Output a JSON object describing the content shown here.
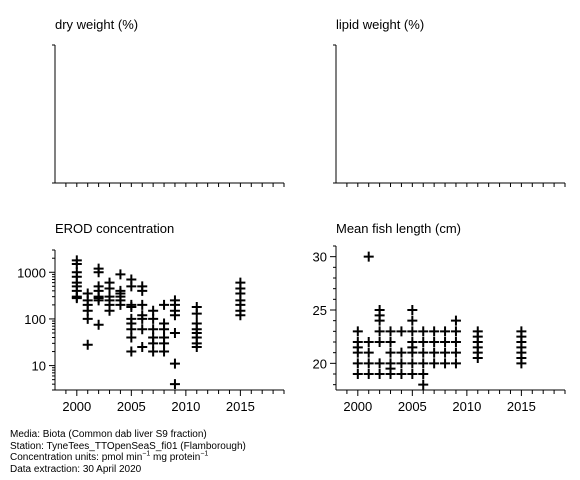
{
  "panels": [
    {
      "id": "dry",
      "title": "dry weight (%)",
      "scale": "linear",
      "empty": true,
      "xlim": [
        1998,
        2019
      ],
      "xticks": [],
      "ylim": [
        0,
        1
      ],
      "yticks": [],
      "points": []
    },
    {
      "id": "lipid",
      "title": "lipid weight (%)",
      "scale": "linear",
      "empty": true,
      "xlim": [
        1998,
        2019
      ],
      "xticks": [],
      "ylim": [
        0,
        1
      ],
      "yticks": [],
      "points": []
    },
    {
      "id": "erod",
      "title": "EROD concentration",
      "scale": "log",
      "xlim": [
        1998,
        2019
      ],
      "xticks": [
        2000,
        2005,
        2010,
        2015
      ],
      "ylim": [
        3,
        3000
      ],
      "yticks": [
        10,
        100,
        1000
      ],
      "yticklabels": [
        "10",
        "100",
        "1000"
      ],
      "points": [
        [
          2000,
          1800
        ],
        [
          2000,
          1500
        ],
        [
          2000,
          1000
        ],
        [
          2000,
          800
        ],
        [
          2000,
          600
        ],
        [
          2000,
          500
        ],
        [
          2000,
          400
        ],
        [
          2000,
          300
        ],
        [
          2000,
          280
        ],
        [
          2001,
          350
        ],
        [
          2001,
          250
        ],
        [
          2001,
          200
        ],
        [
          2001,
          150
        ],
        [
          2001,
          100
        ],
        [
          2001,
          28
        ],
        [
          2002,
          1200
        ],
        [
          2002,
          1000
        ],
        [
          2002,
          500
        ],
        [
          2002,
          400
        ],
        [
          2002,
          300
        ],
        [
          2002,
          280
        ],
        [
          2002,
          250
        ],
        [
          2002,
          75
        ],
        [
          2003,
          600
        ],
        [
          2003,
          450
        ],
        [
          2003,
          300
        ],
        [
          2003,
          250
        ],
        [
          2003,
          200
        ],
        [
          2003,
          150
        ],
        [
          2004,
          900
        ],
        [
          2004,
          400
        ],
        [
          2004,
          350
        ],
        [
          2004,
          300
        ],
        [
          2004,
          250
        ],
        [
          2004,
          200
        ],
        [
          2005,
          700
        ],
        [
          2005,
          500
        ],
        [
          2005,
          200
        ],
        [
          2005,
          180
        ],
        [
          2005,
          100
        ],
        [
          2005,
          80
        ],
        [
          2005,
          60
        ],
        [
          2005,
          40
        ],
        [
          2005,
          20
        ],
        [
          2006,
          500
        ],
        [
          2006,
          400
        ],
        [
          2006,
          200
        ],
        [
          2006,
          120
        ],
        [
          2006,
          100
        ],
        [
          2006,
          60
        ],
        [
          2006,
          25
        ],
        [
          2007,
          150
        ],
        [
          2007,
          100
        ],
        [
          2007,
          60
        ],
        [
          2007,
          40
        ],
        [
          2007,
          30
        ],
        [
          2007,
          20
        ],
        [
          2008,
          200
        ],
        [
          2008,
          80
        ],
        [
          2008,
          60
        ],
        [
          2008,
          40
        ],
        [
          2008,
          30
        ],
        [
          2008,
          20
        ],
        [
          2009,
          250
        ],
        [
          2009,
          200
        ],
        [
          2009,
          150
        ],
        [
          2009,
          120
        ],
        [
          2009,
          50
        ],
        [
          2009,
          11
        ],
        [
          2009,
          4
        ],
        [
          2011,
          180
        ],
        [
          2011,
          130
        ],
        [
          2011,
          80
        ],
        [
          2011,
          60
        ],
        [
          2011,
          50
        ],
        [
          2011,
          40
        ],
        [
          2011,
          30
        ],
        [
          2011,
          25
        ],
        [
          2015,
          600
        ],
        [
          2015,
          450
        ],
        [
          2015,
          350
        ],
        [
          2015,
          250
        ],
        [
          2015,
          200
        ],
        [
          2015,
          150
        ],
        [
          2015,
          120
        ]
      ]
    },
    {
      "id": "length",
      "title": "Mean fish length (cm)",
      "scale": "linear",
      "xlim": [
        1998,
        2019
      ],
      "xticks": [
        2000,
        2005,
        2010,
        2015
      ],
      "ylim": [
        17.5,
        31
      ],
      "yticks": [
        20,
        25,
        30
      ],
      "yticklabels": [
        "20",
        "25",
        "30"
      ],
      "points": [
        [
          2000,
          23
        ],
        [
          2000,
          22
        ],
        [
          2000,
          21.5
        ],
        [
          2000,
          21
        ],
        [
          2000,
          20
        ],
        [
          2000,
          19
        ],
        [
          2001,
          22
        ],
        [
          2001,
          21
        ],
        [
          2001,
          20
        ],
        [
          2001,
          19
        ],
        [
          2001,
          30
        ],
        [
          2002,
          25
        ],
        [
          2002,
          24.5
        ],
        [
          2002,
          24
        ],
        [
          2002,
          23
        ],
        [
          2002,
          22
        ],
        [
          2002,
          20
        ],
        [
          2002,
          19
        ],
        [
          2003,
          23
        ],
        [
          2003,
          22
        ],
        [
          2003,
          21
        ],
        [
          2003,
          20
        ],
        [
          2003,
          19.5
        ],
        [
          2003,
          19
        ],
        [
          2004,
          23
        ],
        [
          2004,
          21
        ],
        [
          2004,
          20
        ],
        [
          2004,
          19
        ],
        [
          2005,
          25
        ],
        [
          2005,
          24
        ],
        [
          2005,
          23
        ],
        [
          2005,
          22
        ],
        [
          2005,
          21.5
        ],
        [
          2005,
          21
        ],
        [
          2005,
          20
        ],
        [
          2005,
          19
        ],
        [
          2006,
          23
        ],
        [
          2006,
          22
        ],
        [
          2006,
          21
        ],
        [
          2006,
          20
        ],
        [
          2006,
          19
        ],
        [
          2006,
          18
        ],
        [
          2007,
          23
        ],
        [
          2007,
          22
        ],
        [
          2007,
          21
        ],
        [
          2007,
          20
        ],
        [
          2008,
          23
        ],
        [
          2008,
          22
        ],
        [
          2008,
          21
        ],
        [
          2008,
          20
        ],
        [
          2009,
          24
        ],
        [
          2009,
          23
        ],
        [
          2009,
          22
        ],
        [
          2009,
          21
        ],
        [
          2009,
          20
        ],
        [
          2011,
          23
        ],
        [
          2011,
          22.5
        ],
        [
          2011,
          22
        ],
        [
          2011,
          21.5
        ],
        [
          2011,
          21
        ],
        [
          2011,
          20.5
        ],
        [
          2015,
          23
        ],
        [
          2015,
          22.5
        ],
        [
          2015,
          22
        ],
        [
          2015,
          21.5
        ],
        [
          2015,
          21
        ],
        [
          2015,
          20.5
        ],
        [
          2015,
          20
        ]
      ]
    }
  ],
  "footer": {
    "media": "Media: Biota (Common dab liver S9 fraction)",
    "station": "Station: TyneTees_TTOpenSeaS_fi01 (Flamborough)",
    "conc_prefix": "Concentration units:  pmol min",
    "conc_sup1": "−1",
    "conc_mid": " mg protein",
    "conc_sup2": "−1",
    "extraction": "Data extraction: 30 April 2020"
  },
  "chart_data": [
    {
      "type": "scatter",
      "title": "dry weight (%)",
      "points": []
    },
    {
      "type": "scatter",
      "title": "lipid weight (%)",
      "points": []
    },
    {
      "type": "scatter",
      "title": "EROD concentration",
      "yscale": "log",
      "ylim": [
        3,
        3000
      ],
      "xlim": [
        1998,
        2019
      ]
    },
    {
      "type": "scatter",
      "title": "Mean fish length (cm)",
      "ylim": [
        17.5,
        31
      ],
      "xlim": [
        1998,
        2019
      ]
    }
  ]
}
